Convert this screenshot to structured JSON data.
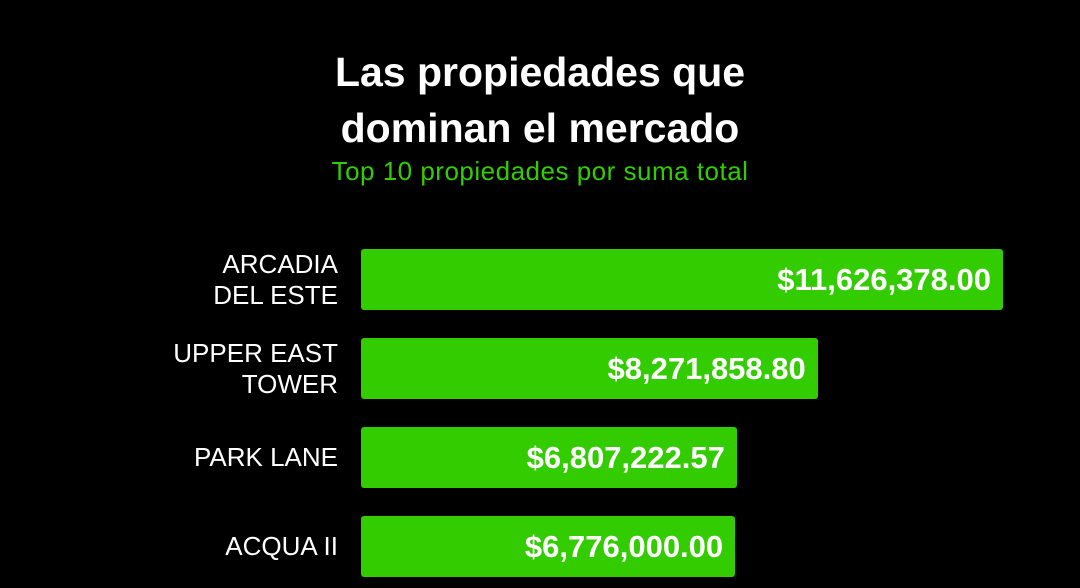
{
  "chart_data": {
    "type": "bar",
    "orientation": "horizontal",
    "title": "Las propiedades que dominan el mercado",
    "subtitle": "Top 10 propiedades por suma total",
    "categories": [
      "ARCADIA DEL ESTE",
      "UPPER EAST TOWER",
      "PARK LANE",
      "ACQUA II"
    ],
    "values": [
      11626378.0,
      8271858.8,
      6807222.57,
      6776000.0
    ],
    "data_labels": [
      "$11,626,378.00",
      "$8,271,858.80",
      "$6,807,222.57",
      "$6,776,000.00"
    ],
    "grid": false,
    "colors": {
      "bar": "#33cc00",
      "background": "#000000",
      "text": "#ffffff",
      "subtitle": "#33cc00"
    }
  }
}
